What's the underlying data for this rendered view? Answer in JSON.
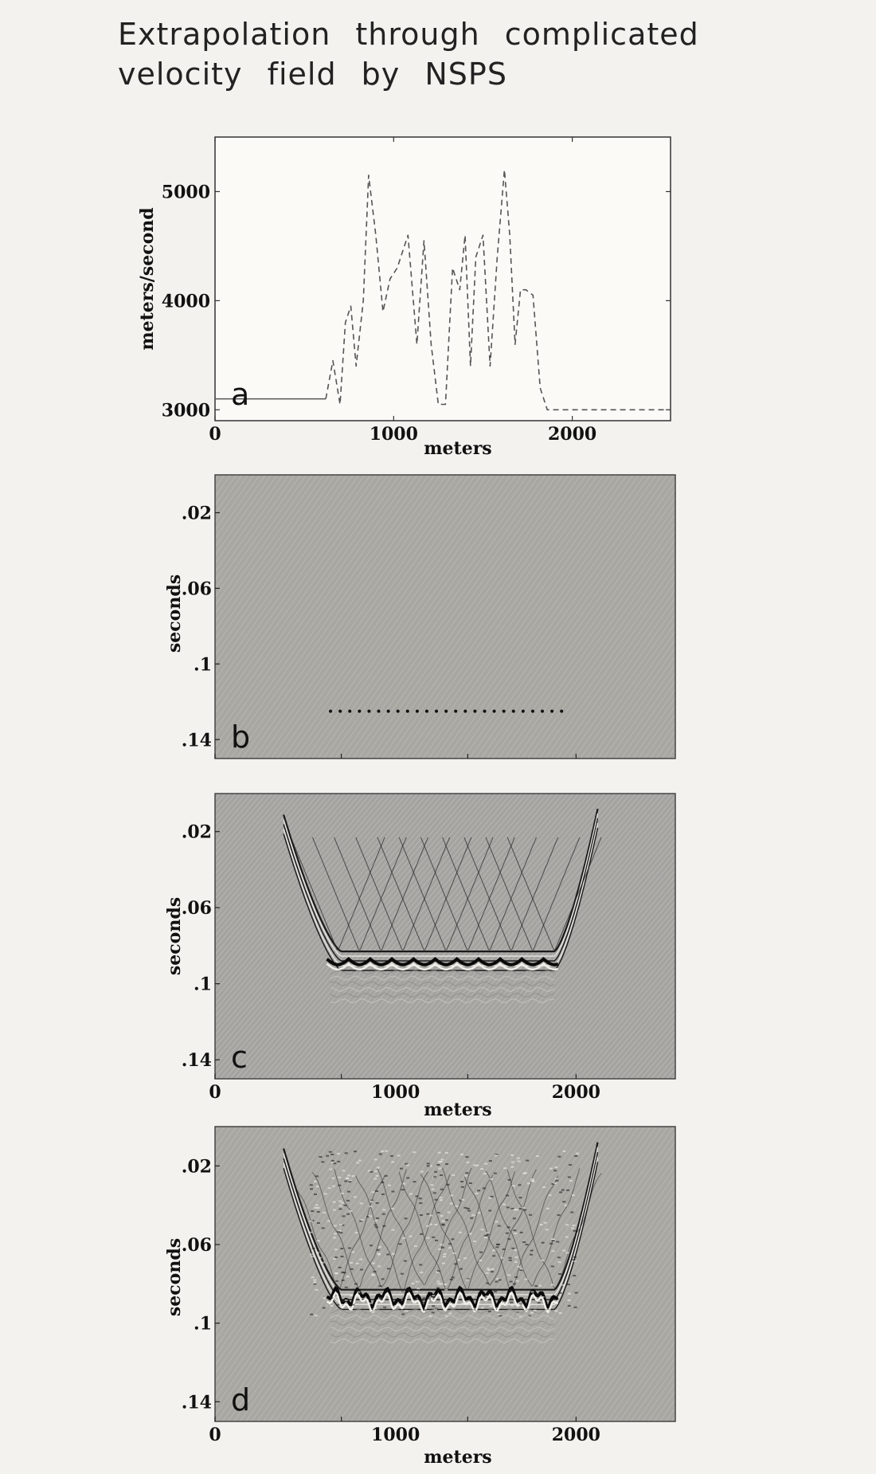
{
  "title": {
    "line1": "Extrapolation through complicated",
    "line2": "velocity field by NSPS"
  },
  "chart_data": [
    {
      "type": "line",
      "panel": "a",
      "xlabel": "meters",
      "ylabel": "meters/second",
      "xlim": [
        0,
        2550
      ],
      "ylim": [
        2900,
        5500
      ],
      "x_ticks": [
        "0",
        "1000",
        "2000"
      ],
      "y_ticks": [
        "3000",
        "4000",
        "5000"
      ],
      "series": [
        {
          "style": "dashed",
          "x": [
            0,
            620,
            660,
            700,
            730,
            760,
            790,
            830,
            860,
            900,
            940,
            980,
            1020,
            1080,
            1130,
            1170,
            1210,
            1250,
            1290,
            1330,
            1370,
            1400,
            1430,
            1460,
            1500,
            1540,
            1580,
            1620,
            1650,
            1680,
            1710,
            1740,
            1780,
            1820,
            1860,
            1900,
            2550
          ],
          "y": [
            3100,
            3100,
            3450,
            3050,
            3800,
            3950,
            3400,
            4000,
            5150,
            4600,
            3900,
            4200,
            4300,
            4600,
            3600,
            4550,
            3600,
            3050,
            3050,
            4300,
            4100,
            4600,
            3400,
            4400,
            4600,
            3400,
            4400,
            5200,
            4600,
            3600,
            4100,
            4100,
            4050,
            3200,
            3000,
            3000,
            3000
          ]
        }
      ]
    },
    {
      "type": "heatmap",
      "panel": "b",
      "ylabel": "seconds",
      "ylim": [
        0,
        0.15
      ],
      "xlim": [
        0,
        2550
      ],
      "y_ticks": [
        ".02",
        ".06",
        ".1",
        ".14"
      ],
      "note_points_time": 0.125,
      "points_x_range": [
        640,
        1920
      ]
    },
    {
      "type": "heatmap",
      "panel": "c",
      "xlabel": "meters",
      "ylabel": "seconds",
      "ylim": [
        0,
        0.15
      ],
      "xlim": [
        0,
        2550
      ],
      "x_ticks": [
        "0",
        "1000",
        "2000"
      ],
      "y_ticks": [
        ".02",
        ".06",
        ".1",
        ".14"
      ]
    },
    {
      "type": "heatmap",
      "panel": "d",
      "xlabel": "meters",
      "ylabel": "seconds",
      "ylim": [
        0,
        0.15
      ],
      "xlim": [
        0,
        2550
      ],
      "x_ticks": [
        "0",
        "1000",
        "2000"
      ],
      "y_ticks": [
        ".02",
        ".06",
        ".1",
        ".14"
      ]
    }
  ]
}
